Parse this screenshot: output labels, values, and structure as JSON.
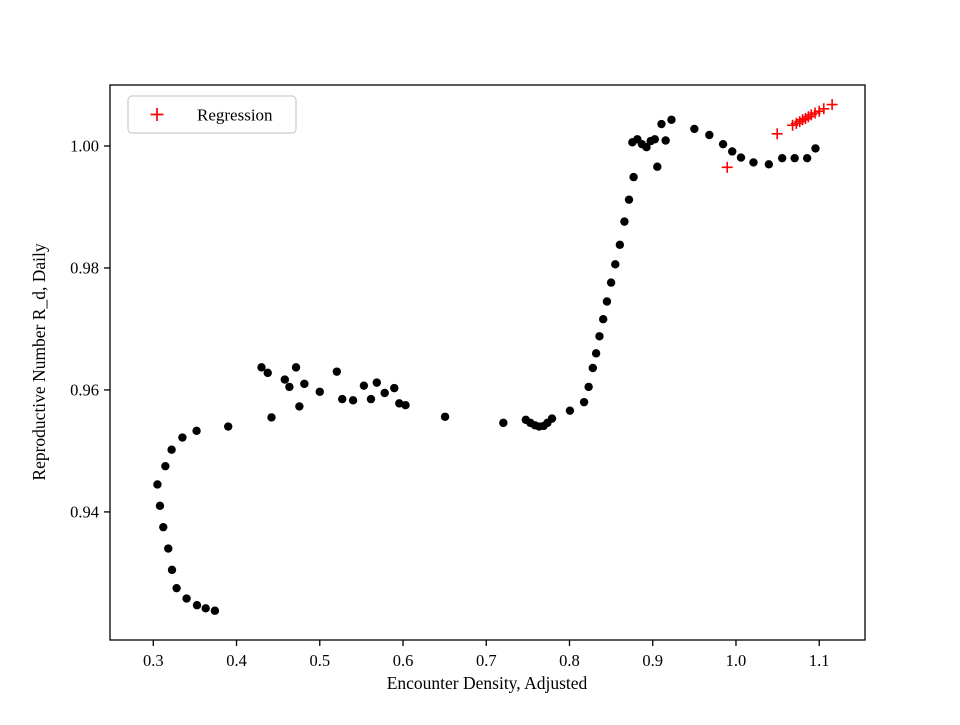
{
  "chart_data": {
    "type": "scatter",
    "title": "",
    "xlabel": "Encounter Density, Adjusted",
    "ylabel": "Reproductive Number R_d, Daily",
    "xlim": [
      0.248,
      1.155
    ],
    "ylim": [
      0.919,
      1.01
    ],
    "xticks": [
      0.3,
      0.4,
      0.5,
      0.6,
      0.7,
      0.8,
      0.9,
      1.0,
      1.1
    ],
    "xtick_labels": [
      "0.3",
      "0.4",
      "0.5",
      "0.6",
      "0.7",
      "0.8",
      "0.9",
      "1.0",
      "1.1"
    ],
    "yticks": [
      0.94,
      0.96,
      0.98,
      1.0
    ],
    "ytick_labels": [
      "0.94",
      "0.96",
      "0.98",
      "1.00"
    ],
    "grid": false,
    "legend_position": "upper left",
    "axis_color": "#000000",
    "series": [
      {
        "name": "data",
        "marker": "circle",
        "color": "#000000",
        "in_legend": false,
        "points": [
          [
            0.305,
            0.9445
          ],
          [
            0.308,
            0.941
          ],
          [
            0.312,
            0.9375
          ],
          [
            0.318,
            0.934
          ],
          [
            0.3225,
            0.9305
          ],
          [
            0.328,
            0.9275
          ],
          [
            0.34,
            0.9258
          ],
          [
            0.3525,
            0.9247
          ],
          [
            0.363,
            0.9242
          ],
          [
            0.374,
            0.9238
          ],
          [
            0.3145,
            0.9475
          ],
          [
            0.322,
            0.9502
          ],
          [
            0.335,
            0.9522
          ],
          [
            0.352,
            0.9533
          ],
          [
            0.39,
            0.954
          ],
          [
            0.43,
            0.9637
          ],
          [
            0.4375,
            0.9628
          ],
          [
            0.442,
            0.9555
          ],
          [
            0.458,
            0.9617
          ],
          [
            0.4635,
            0.9605
          ],
          [
            0.4715,
            0.9637
          ],
          [
            0.4755,
            0.9573
          ],
          [
            0.4815,
            0.961
          ],
          [
            0.5,
            0.9597
          ],
          [
            0.5205,
            0.963
          ],
          [
            0.527,
            0.9585
          ],
          [
            0.54,
            0.9583
          ],
          [
            0.553,
            0.9607
          ],
          [
            0.5615,
            0.9585
          ],
          [
            0.5685,
            0.9612
          ],
          [
            0.578,
            0.9595
          ],
          [
            0.5895,
            0.9603
          ],
          [
            0.5955,
            0.9578
          ],
          [
            0.603,
            0.9575
          ],
          [
            0.6505,
            0.9556
          ],
          [
            0.7205,
            0.9546
          ],
          [
            0.7475,
            0.9551
          ],
          [
            0.753,
            0.9546
          ],
          [
            0.7585,
            0.9542
          ],
          [
            0.7635,
            0.954
          ],
          [
            0.769,
            0.9541
          ],
          [
            0.7735,
            0.9546
          ],
          [
            0.779,
            0.9553
          ],
          [
            0.8005,
            0.9566
          ],
          [
            0.8175,
            0.958
          ],
          [
            0.823,
            0.9605
          ],
          [
            0.828,
            0.9636
          ],
          [
            0.832,
            0.966
          ],
          [
            0.836,
            0.9688
          ],
          [
            0.8405,
            0.9716
          ],
          [
            0.845,
            0.9745
          ],
          [
            0.85,
            0.9776
          ],
          [
            0.855,
            0.9806
          ],
          [
            0.8605,
            0.9838
          ],
          [
            0.866,
            0.9876
          ],
          [
            0.8715,
            0.9912
          ],
          [
            0.877,
            0.9949
          ],
          [
            0.8755,
            1.0006
          ],
          [
            0.8815,
            1.0011
          ],
          [
            0.887,
            1.0003
          ],
          [
            0.8925,
            0.9998
          ],
          [
            0.8975,
            1.0008
          ],
          [
            0.9025,
            1.0011
          ],
          [
            0.9055,
            0.9966
          ],
          [
            0.9105,
            1.0036
          ],
          [
            0.9155,
            1.0009
          ],
          [
            0.9225,
            1.0043
          ],
          [
            0.95,
            1.0028
          ],
          [
            0.968,
            1.0018
          ],
          [
            0.9845,
            1.0003
          ],
          [
            0.9955,
            0.9991
          ],
          [
            1.006,
            0.9981
          ],
          [
            1.021,
            0.9973
          ],
          [
            1.0395,
            0.997
          ],
          [
            1.0555,
            0.998
          ],
          [
            1.0705,
            0.998
          ],
          [
            1.0855,
            0.998
          ],
          [
            1.0955,
            0.9996
          ]
        ]
      },
      {
        "name": "Regression",
        "marker": "plus",
        "color": "#ff0000",
        "in_legend": true,
        "points": [
          [
            0.9895,
            0.9965
          ],
          [
            1.0495,
            1.002
          ],
          [
            1.068,
            1.0034
          ],
          [
            1.0725,
            1.0037
          ],
          [
            1.0765,
            1.004
          ],
          [
            1.08,
            1.0043
          ],
          [
            1.0835,
            1.0045
          ],
          [
            1.087,
            1.0048
          ],
          [
            1.0905,
            1.0051
          ],
          [
            1.095,
            1.0054
          ],
          [
            1.1,
            1.0057
          ],
          [
            1.1055,
            1.0061
          ],
          [
            1.1155,
            1.0068
          ]
        ]
      }
    ],
    "legend": {
      "label": "Regression"
    }
  }
}
